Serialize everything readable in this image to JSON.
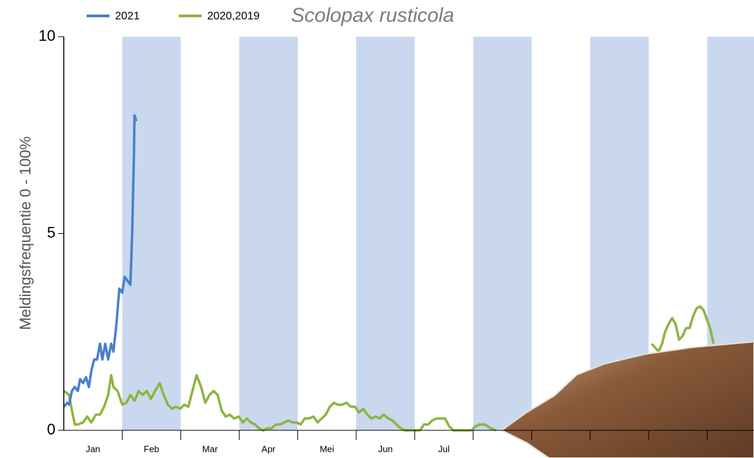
{
  "chart_data": {
    "type": "line",
    "title": "Scolopax rusticola",
    "y_label": "Meldingsfrequentie 0 - 100%",
    "categories": [
      "Jan",
      "Feb",
      "Mar",
      "Apr",
      "Mei",
      "Jun",
      "Jul",
      null,
      null,
      null,
      null,
      null
    ],
    "xlim": [
      0,
      12
    ],
    "ylim": [
      0,
      10
    ],
    "yticks": [
      0,
      5,
      10
    ],
    "series": [
      {
        "name": "2021",
        "color": "#4a7fcb",
        "x": [
          0,
          0.06,
          0.09,
          0.14,
          0.19,
          0.24,
          0.28,
          0.33,
          0.38,
          0.43,
          0.47,
          0.52,
          0.57,
          0.62,
          0.66,
          0.71,
          0.76,
          0.81,
          0.85,
          0.9,
          0.95,
          1.0,
          1.04,
          1.09,
          1.14,
          1.17,
          1.2,
          1.21,
          1.24
        ],
        "values": [
          0.6,
          0.7,
          0.65,
          1.0,
          1.1,
          1.0,
          1.3,
          1.2,
          1.35,
          1.1,
          1.5,
          1.8,
          1.8,
          2.2,
          1.8,
          2.2,
          1.8,
          2.2,
          2.0,
          2.7,
          3.6,
          3.5,
          3.9,
          3.8,
          3.7,
          5.0,
          7.0,
          8.0,
          7.85
        ]
      },
      {
        "name": "2020,2019",
        "color": "#8db43f",
        "x": [
          0,
          0.05,
          0.09,
          0.14,
          0.19,
          0.24,
          0.33,
          0.4,
          0.47,
          0.55,
          0.62,
          0.69,
          0.76,
          0.81,
          0.85,
          0.92,
          1.0,
          1.07,
          1.14,
          1.21,
          1.28,
          1.35,
          1.42,
          1.49,
          1.56,
          1.64,
          1.71,
          1.78,
          1.85,
          1.92,
          1.99,
          2.06,
          2.13,
          2.2,
          2.27,
          2.35,
          2.42,
          2.49,
          2.56,
          2.63,
          2.7,
          2.77,
          2.84,
          2.91,
          2.99,
          3.06,
          3.13,
          3.2,
          3.27,
          3.34,
          3.41,
          3.48,
          3.55,
          3.63,
          3.7,
          3.77,
          3.84,
          3.91,
          3.98,
          4.05,
          4.12,
          4.19,
          4.27,
          4.34,
          4.41,
          4.48,
          4.55,
          4.62,
          4.69,
          4.76,
          4.83,
          4.91,
          4.98,
          5.05,
          5.12,
          5.19,
          5.26,
          5.33,
          5.4,
          5.47,
          5.55,
          5.62,
          5.69,
          5.76,
          5.83,
          5.9,
          6.02,
          6.09,
          6.16,
          6.23,
          6.3,
          6.37,
          6.45,
          6.52,
          6.59,
          6.66,
          6.73,
          6.85,
          6.97,
          7.04,
          7.11,
          7.2,
          7.3,
          7.39,
          8.5,
          10.05,
          10.11,
          10.17,
          10.23,
          10.28,
          10.34,
          10.4,
          10.46,
          10.52,
          10.58,
          10.64,
          10.7,
          10.76,
          10.82,
          10.88,
          10.94,
          11.0,
          11.05,
          11.11
        ],
        "values": [
          1.0,
          0.95,
          0.9,
          0.5,
          0.15,
          0.15,
          0.2,
          0.35,
          0.2,
          0.4,
          0.4,
          0.6,
          0.9,
          1.4,
          1.1,
          1.0,
          0.65,
          0.7,
          0.9,
          0.75,
          1.0,
          0.9,
          1.0,
          0.8,
          1.0,
          1.2,
          0.9,
          0.65,
          0.55,
          0.6,
          0.55,
          0.65,
          0.6,
          1.0,
          1.4,
          1.1,
          0.7,
          0.9,
          1.0,
          0.9,
          0.5,
          0.35,
          0.4,
          0.3,
          0.35,
          0.2,
          0.3,
          0.2,
          0.15,
          0.05,
          0.0,
          0.05,
          0.05,
          0.15,
          0.15,
          0.2,
          0.25,
          0.2,
          0.2,
          0.15,
          0.3,
          0.3,
          0.35,
          0.2,
          0.3,
          0.4,
          0.6,
          0.7,
          0.65,
          0.65,
          0.7,
          0.6,
          0.6,
          0.45,
          0.55,
          0.4,
          0.3,
          0.35,
          0.3,
          0.4,
          0.3,
          0.25,
          0.15,
          0.05,
          0.0,
          0.0,
          0.0,
          0.0,
          0.15,
          0.15,
          0.25,
          0.3,
          0.3,
          0.3,
          0.1,
          0.0,
          0.0,
          0.0,
          0.0,
          0.1,
          0.15,
          0.15,
          0.05,
          0.0,
          null,
          2.2,
          2.1,
          2.0,
          2.2,
          2.5,
          2.7,
          2.85,
          2.7,
          2.3,
          2.4,
          2.6,
          2.6,
          2.9,
          3.1,
          3.15,
          3.05,
          2.8,
          2.6,
          2.2
        ]
      }
    ]
  }
}
